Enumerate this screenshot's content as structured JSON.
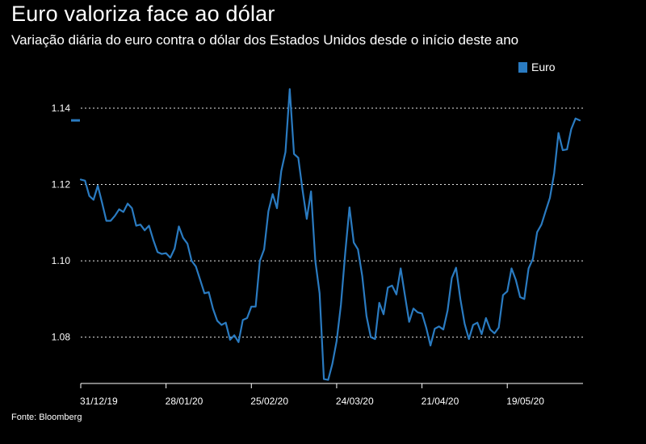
{
  "title": "Euro valoriza face ao dólar",
  "subtitle": "Variação diária do euro contra o dólar dos Estados Unidos desde o início deste ano",
  "source": "Fonte: Bloomberg",
  "colors": {
    "line": "#2a7bc1",
    "background": "#000000",
    "text": "#ffffff",
    "grid": "#ffffff"
  },
  "chart_data": {
    "type": "line",
    "legend_position": "top-right",
    "grid": true,
    "ylim": [
      1.0685,
      1.1455
    ],
    "yticks": [
      1.08,
      1.1,
      1.12,
      1.14
    ],
    "ytick_labels": [
      "1.08",
      "1.10",
      "1.12",
      "1.14"
    ],
    "xticks": [
      "31/12/19",
      "28/01/20",
      "25/02/20",
      "24/03/20",
      "21/04/20",
      "19/05/20"
    ],
    "xtick_labels": [
      "31/12/19",
      "28/01/20",
      "25/02/20",
      "24/03/20",
      "21/04/20",
      "19/05/20"
    ],
    "series": [
      {
        "name": "Euro",
        "values": [
          1.1213,
          1.121,
          1.117,
          1.116,
          1.1197,
          1.1152,
          1.1105,
          1.1105,
          1.1118,
          1.1135,
          1.1128,
          1.115,
          1.1138,
          1.1092,
          1.1095,
          1.108,
          1.1092,
          1.1055,
          1.1023,
          1.1018,
          1.102,
          1.1008,
          1.1032,
          1.109,
          1.106,
          1.1045,
          1.1,
          1.0985,
          1.095,
          1.0915,
          1.0918,
          1.0875,
          1.0843,
          1.0832,
          1.0838,
          1.0793,
          1.0805,
          1.0787,
          1.0845,
          1.085,
          1.088,
          1.088,
          1.1,
          1.103,
          1.113,
          1.1175,
          1.1138,
          1.1235,
          1.1285,
          1.145,
          1.128,
          1.127,
          1.1185,
          1.111,
          1.1182,
          1.1,
          1.0915,
          1.069,
          1.0688,
          1.073,
          1.079,
          1.0885,
          1.102,
          1.114,
          1.1048,
          1.103,
          1.096,
          1.0855,
          1.08,
          1.0795,
          1.089,
          1.086,
          1.093,
          1.0935,
          1.0912,
          1.098,
          1.091,
          1.084,
          1.0875,
          1.0865,
          1.0862,
          1.0825,
          1.0778,
          1.0822,
          1.0828,
          1.082,
          1.087,
          1.0955,
          1.0982,
          1.09,
          1.0835,
          1.0795,
          1.0832,
          1.0838,
          1.0808,
          1.085,
          1.082,
          1.081,
          1.0825,
          1.091,
          1.092,
          1.098,
          1.095,
          1.0905,
          1.09,
          1.098,
          1.1005,
          1.1075,
          1.1095,
          1.113,
          1.1165,
          1.123,
          1.1335,
          1.129,
          1.1292,
          1.1345,
          1.1373,
          1.1368
        ]
      }
    ]
  }
}
